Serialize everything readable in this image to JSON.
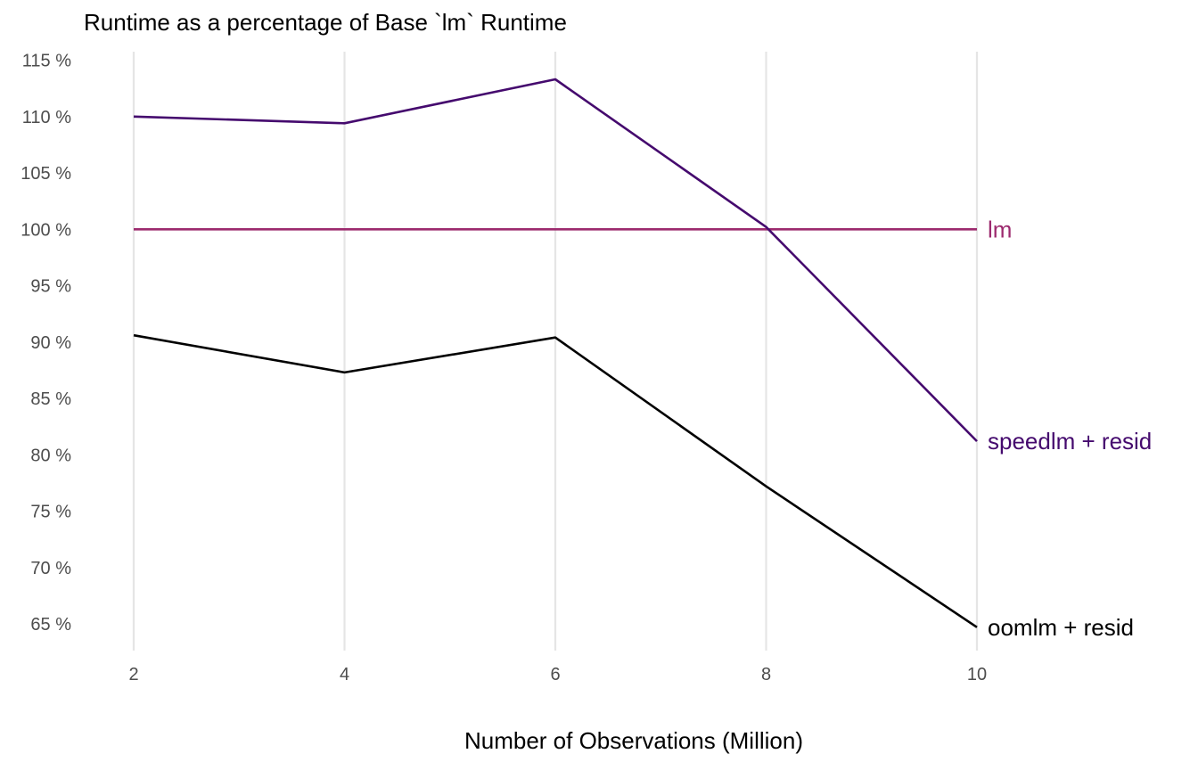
{
  "chart_data": {
    "type": "line",
    "title": "Runtime as a percentage of Base `lm` Runtime",
    "xlabel": "Number of Observations (Million)",
    "ylabel": "",
    "x": [
      2,
      4,
      6,
      8,
      10
    ],
    "xticks": [
      "2",
      "4",
      "6",
      "8",
      "10"
    ],
    "yticks": [
      "65 %",
      "70 %",
      "75 %",
      "80 %",
      "85 %",
      "90 %",
      "95 %",
      "100 %",
      "105 %",
      "110 %",
      "115 %"
    ],
    "xlim": [
      2,
      10
    ],
    "ylim": [
      63,
      115
    ],
    "grid": "vertical major gridlines",
    "legend": "direct labels at right end of lines",
    "series": [
      {
        "name": "lm",
        "color": "#9C2A6E",
        "values": [
          100,
          100,
          100,
          100,
          100
        ]
      },
      {
        "name": "speedlm + resid",
        "color": "#450A6E",
        "values": [
          110,
          109.4,
          113.3,
          100.2,
          81.2
        ]
      },
      {
        "name": "oomlm + resid",
        "color": "#000000",
        "values": [
          90.6,
          87.3,
          90.4,
          77.2,
          64.7
        ]
      }
    ]
  }
}
